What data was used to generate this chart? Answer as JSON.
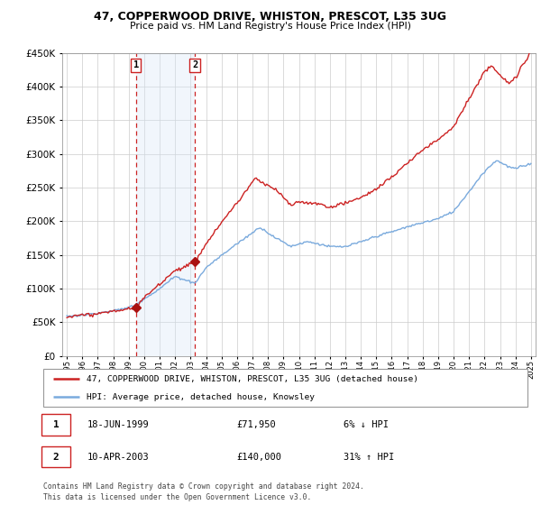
{
  "title": "47, COPPERWOOD DRIVE, WHISTON, PRESCOT, L35 3UG",
  "subtitle": "Price paid vs. HM Land Registry's House Price Index (HPI)",
  "sale1_date_x": 1999.46,
  "sale1_label": "18-JUN-1999",
  "sale1_price": 71950,
  "sale1_hpi_pct": "6% ↓ HPI",
  "sale2_date_x": 2003.27,
  "sale2_label": "10-APR-2003",
  "sale2_price": 140000,
  "sale2_hpi_pct": "31% ↑ HPI",
  "legend1": "47, COPPERWOOD DRIVE, WHISTON, PRESCOT, L35 3UG (detached house)",
  "legend2": "HPI: Average price, detached house, Knowsley",
  "footer": "Contains HM Land Registry data © Crown copyright and database right 2024.\nThis data is licensed under the Open Government Licence v3.0.",
  "hpi_color": "#7aaadd",
  "price_color": "#cc2222",
  "shade_color": "#d8e8f8",
  "vline_color": "#cc2222",
  "marker_color": "#aa1111",
  "ylim_min": 0,
  "ylim_max": 450000,
  "xlim_min": 1994.7,
  "xlim_max": 2025.3
}
